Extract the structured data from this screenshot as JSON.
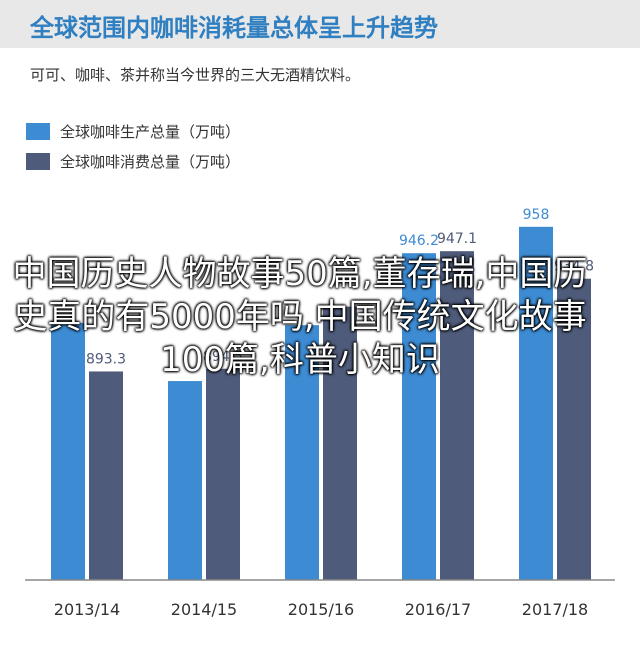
{
  "header": {
    "title": "全球范围内咖啡消耗量总体呈上升趋势",
    "subtitle": "可可、咖啡、茶并称当今世界的三大无酒精饮料。"
  },
  "overlay": {
    "text": "中国历史人物故事50篇,董存瑞,中国历史真的有5000年吗,中国传统文化故事100篇,科普小知识"
  },
  "colors": {
    "production": "#3d8bd3",
    "consumption": "#4f5b7a",
    "title": "#2f7fc1",
    "title_bg": "#e8e8e8"
  },
  "chart_data": {
    "type": "bar",
    "title": "",
    "xlabel": "",
    "ylabel": "",
    "ylim": [
      800,
      970
    ],
    "grid": false,
    "legend_position": "top-left",
    "categories": [
      "2013/14",
      "2014/15",
      "2015/16",
      "2016/17",
      "2017/18"
    ],
    "series": [
      {
        "name": "全球咖啡生产总量（万吨）",
        "values": [
          915,
          889,
          914,
          946.2,
          958
        ],
        "labels": [
          "",
          "",
          "",
          "946.2",
          "958"
        ]
      },
      {
        "name": "全球咖啡消费总量（万吨）",
        "values": [
          893.3,
          894.5,
          922.3,
          947.1,
          934.8
        ],
        "labels": [
          "893.3",
          "894.5",
          "",
          "947.1",
          "934.8"
        ]
      }
    ]
  }
}
